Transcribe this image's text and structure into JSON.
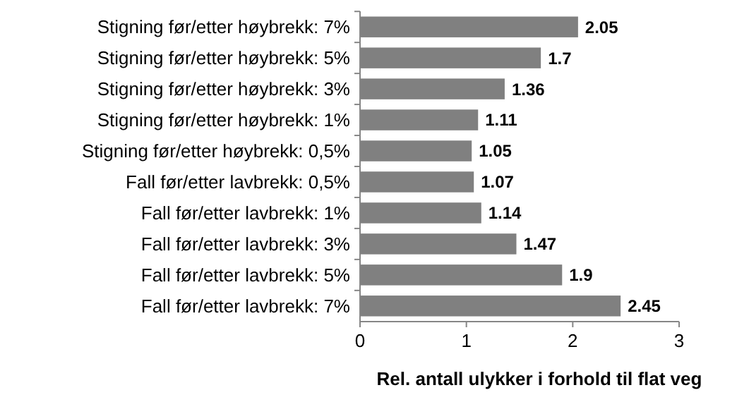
{
  "chart_data": {
    "type": "bar",
    "orientation": "horizontal",
    "xlabel": "Rel. antall ulykker i forhold til flat veg",
    "categories": [
      "Stigning før/etter høybrekk: 7%",
      "Stigning før/etter høybrekk: 5%",
      "Stigning før/etter høybrekk: 3%",
      "Stigning før/etter høybrekk: 1%",
      "Stigning før/etter høybrekk: 0,5%",
      "Fall før/etter lavbrekk: 0,5%",
      "Fall før/etter lavbrekk: 1%",
      "Fall før/etter lavbrekk: 3%",
      "Fall før/etter lavbrekk: 5%",
      "Fall før/etter lavbrekk: 7%"
    ],
    "values": [
      2.05,
      1.7,
      1.36,
      1.11,
      1.05,
      1.07,
      1.14,
      1.47,
      1.9,
      2.45
    ],
    "value_labels": [
      "2.05",
      "1.7",
      "1.36",
      "1.11",
      "1.05",
      "1.07",
      "1.14",
      "1.47",
      "1.9",
      "2.45"
    ],
    "color": "#808080",
    "xlim": [
      0,
      3
    ],
    "xticks": [
      0,
      1,
      2,
      3
    ],
    "grid": false
  }
}
